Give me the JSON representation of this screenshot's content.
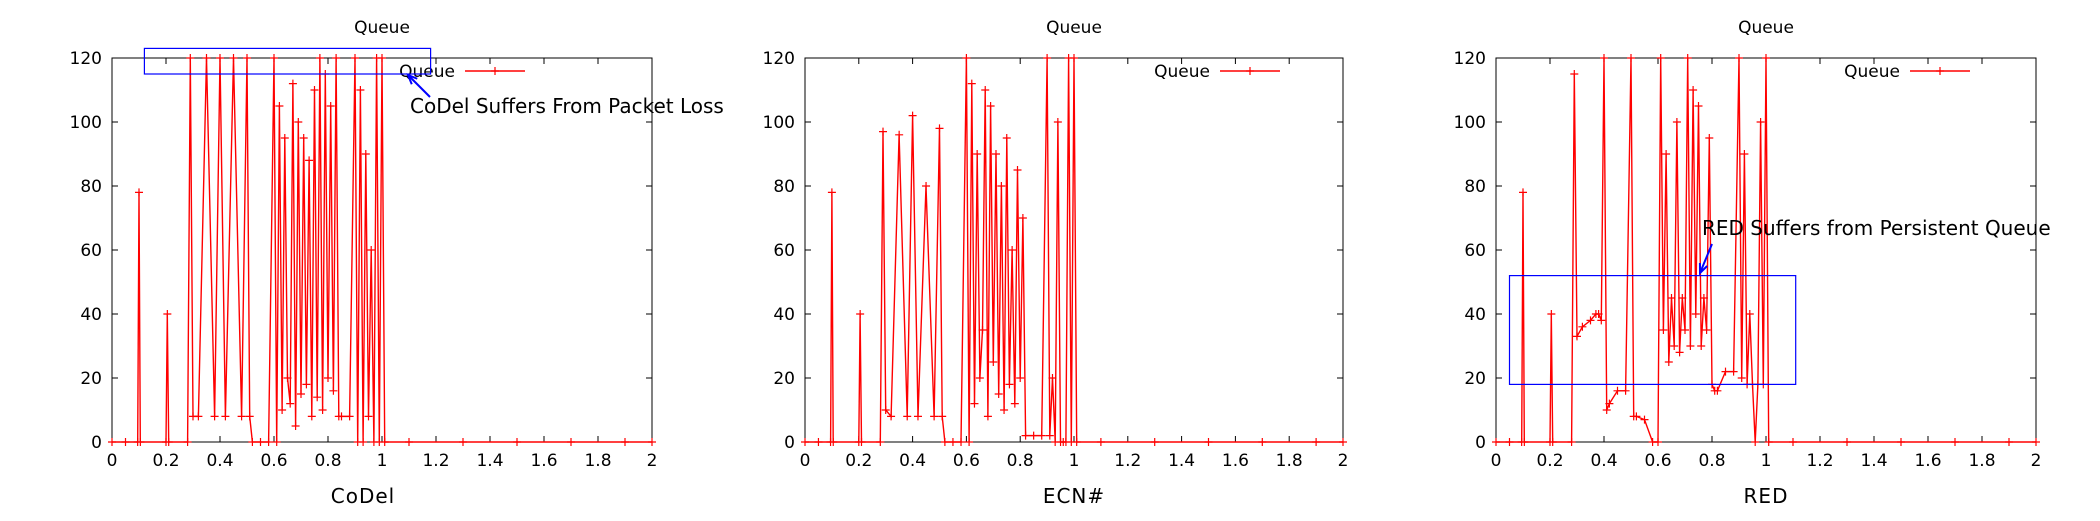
{
  "chart_data": [
    {
      "type": "line",
      "title": "Queue",
      "caption": "CoDel",
      "xlim": [
        0,
        2
      ],
      "ylim": [
        0,
        120
      ],
      "xticks": [
        "0",
        "0.2",
        "0.4",
        "0.6",
        "0.8",
        "1",
        "1.2",
        "1.4",
        "1.6",
        "1.8",
        "2"
      ],
      "yticks": [
        "0",
        "20",
        "40",
        "60",
        "80",
        "100",
        "120"
      ],
      "legend": "top-right",
      "grid": false,
      "series": [
        {
          "name": "Queue",
          "color": "#ff0000",
          "marker": "+",
          "x": [
            0,
            0.05,
            0.095,
            0.1,
            0.105,
            0.2,
            0.205,
            0.21,
            0.28,
            0.29,
            0.3,
            0.32,
            0.35,
            0.38,
            0.4,
            0.42,
            0.45,
            0.48,
            0.5,
            0.51,
            0.52,
            0.55,
            0.58,
            0.6,
            0.61,
            0.62,
            0.63,
            0.64,
            0.65,
            0.66,
            0.67,
            0.68,
            0.69,
            0.7,
            0.71,
            0.72,
            0.73,
            0.74,
            0.75,
            0.76,
            0.77,
            0.78,
            0.79,
            0.8,
            0.81,
            0.82,
            0.83,
            0.84,
            0.85,
            0.88,
            0.9,
            0.91,
            0.92,
            0.93,
            0.94,
            0.95,
            0.96,
            0.97,
            0.98,
            0.99,
            1.0,
            1.01,
            1.1,
            1.3,
            1.5,
            1.7,
            1.9,
            2.0
          ],
          "y": [
            0,
            0,
            0,
            78,
            0,
            0,
            40,
            0,
            0,
            120,
            8,
            8,
            120,
            8,
            120,
            8,
            120,
            8,
            120,
            8,
            0,
            0,
            0,
            120,
            0,
            105,
            10,
            95,
            20,
            12,
            112,
            5,
            100,
            15,
            95,
            18,
            88,
            8,
            110,
            14,
            120,
            10,
            115,
            20,
            105,
            16,
            120,
            8,
            8,
            8,
            120,
            0,
            110,
            0,
            90,
            8,
            60,
            0,
            120,
            0,
            120,
            0,
            0,
            0,
            0,
            0,
            0,
            0
          ]
        }
      ],
      "annotations": [
        {
          "text": "CoDel Suffers From Packet Loss",
          "box_x": [
            0.12,
            1.18
          ],
          "box_y": [
            115,
            123
          ]
        }
      ]
    },
    {
      "type": "line",
      "title": "Queue",
      "caption": "ECN#",
      "xlim": [
        0,
        2
      ],
      "ylim": [
        0,
        120
      ],
      "xticks": [
        "0",
        "0.2",
        "0.4",
        "0.6",
        "0.8",
        "1",
        "1.2",
        "1.4",
        "1.6",
        "1.8",
        "2"
      ],
      "yticks": [
        "0",
        "20",
        "40",
        "60",
        "80",
        "100",
        "120"
      ],
      "legend": "top-right",
      "grid": false,
      "series": [
        {
          "name": "Queue",
          "color": "#ff0000",
          "marker": "+",
          "x": [
            0,
            0.05,
            0.095,
            0.1,
            0.105,
            0.2,
            0.205,
            0.21,
            0.28,
            0.29,
            0.3,
            0.32,
            0.35,
            0.38,
            0.4,
            0.42,
            0.45,
            0.48,
            0.5,
            0.51,
            0.52,
            0.55,
            0.58,
            0.6,
            0.61,
            0.62,
            0.63,
            0.64,
            0.65,
            0.66,
            0.67,
            0.68,
            0.69,
            0.7,
            0.71,
            0.72,
            0.73,
            0.74,
            0.75,
            0.76,
            0.77,
            0.78,
            0.79,
            0.8,
            0.81,
            0.82,
            0.85,
            0.88,
            0.9,
            0.91,
            0.92,
            0.93,
            0.94,
            0.95,
            0.96,
            0.97,
            0.98,
            0.99,
            1.0,
            1.01,
            1.1,
            1.3,
            1.5,
            1.7,
            1.9,
            2.0
          ],
          "y": [
            0,
            0,
            0,
            78,
            0,
            0,
            40,
            0,
            0,
            97,
            10,
            8,
            96,
            8,
            102,
            8,
            80,
            8,
            98,
            8,
            0,
            0,
            0,
            120,
            0,
            112,
            12,
            90,
            20,
            35,
            110,
            8,
            105,
            25,
            90,
            15,
            80,
            10,
            95,
            18,
            60,
            12,
            85,
            20,
            70,
            2,
            2,
            2,
            120,
            2,
            20,
            0,
            100,
            0,
            0,
            0,
            120,
            0,
            120,
            0,
            0,
            0,
            0,
            0,
            0,
            0
          ]
        }
      ]
    },
    {
      "type": "line",
      "title": "Queue",
      "caption": "RED",
      "xlim": [
        0,
        2
      ],
      "ylim": [
        0,
        120
      ],
      "xticks": [
        "0",
        "0.2",
        "0.4",
        "0.6",
        "0.8",
        "1",
        "1.2",
        "1.4",
        "1.6",
        "1.8",
        "2"
      ],
      "yticks": [
        "0",
        "20",
        "40",
        "60",
        "80",
        "100",
        "120"
      ],
      "legend": "top-right",
      "grid": false,
      "series": [
        {
          "name": "Queue",
          "color": "#ff0000",
          "marker": "+",
          "x": [
            0,
            0.05,
            0.095,
            0.1,
            0.105,
            0.2,
            0.205,
            0.21,
            0.28,
            0.29,
            0.3,
            0.32,
            0.35,
            0.37,
            0.38,
            0.39,
            0.4,
            0.41,
            0.42,
            0.45,
            0.48,
            0.5,
            0.51,
            0.52,
            0.55,
            0.58,
            0.6,
            0.61,
            0.62,
            0.63,
            0.64,
            0.65,
            0.66,
            0.67,
            0.68,
            0.69,
            0.7,
            0.71,
            0.72,
            0.73,
            0.74,
            0.75,
            0.76,
            0.77,
            0.78,
            0.79,
            0.8,
            0.81,
            0.82,
            0.85,
            0.88,
            0.9,
            0.91,
            0.92,
            0.93,
            0.94,
            0.95,
            0.96,
            0.97,
            0.98,
            0.99,
            1.0,
            1.01,
            1.1,
            1.3,
            1.5,
            1.7,
            1.9,
            2.0
          ],
          "y": [
            0,
            0,
            0,
            78,
            0,
            0,
            40,
            0,
            0,
            115,
            33,
            36,
            38,
            40,
            40,
            38,
            120,
            10,
            12,
            16,
            16,
            120,
            8,
            8,
            7,
            0,
            0,
            120,
            35,
            90,
            25,
            45,
            30,
            100,
            28,
            45,
            35,
            120,
            30,
            110,
            40,
            105,
            30,
            45,
            35,
            95,
            18,
            16,
            16,
            22,
            22,
            120,
            20,
            90,
            18,
            40,
            18,
            0,
            18,
            100,
            18,
            120,
            0,
            0,
            0,
            0,
            0,
            0,
            0
          ]
        }
      ],
      "annotations": [
        {
          "text": "RED Suffers from Persistent Queue",
          "box_x": [
            0.05,
            1.11
          ],
          "box_y": [
            18,
            52
          ]
        }
      ]
    }
  ]
}
